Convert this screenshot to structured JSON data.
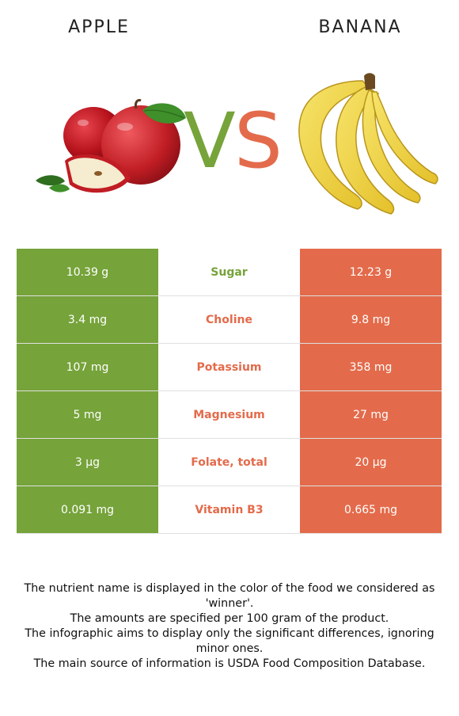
{
  "colors": {
    "left_accent": "#76a33a",
    "right_accent": "#e36b4b",
    "row_divider": "#e0e0e0"
  },
  "header": {
    "left_food": "APPLE",
    "right_food": "BANANA",
    "vs_v": "V",
    "vs_s": "S"
  },
  "images": {
    "left": "apple-image",
    "right": "banana-image"
  },
  "rows": [
    {
      "left": "10.39 g",
      "nutrient": "Sugar",
      "right": "12.23 g",
      "winner": "left"
    },
    {
      "left": "3.4 mg",
      "nutrient": "Choline",
      "right": "9.8 mg",
      "winner": "right"
    },
    {
      "left": "107 mg",
      "nutrient": "Potassium",
      "right": "358 mg",
      "winner": "right"
    },
    {
      "left": "5 mg",
      "nutrient": "Magnesium",
      "right": "27 mg",
      "winner": "right"
    },
    {
      "left": "3 µg",
      "nutrient": "Folate, total",
      "right": "20 µg",
      "winner": "right"
    },
    {
      "left": "0.091 mg",
      "nutrient": "Vitamin B3",
      "right": "0.665 mg",
      "winner": "right"
    }
  ],
  "footer": {
    "line1": "The nutrient name is displayed in the color of the food we considered as 'winner'.",
    "line2": "The amounts are specified per 100 gram of the product.",
    "line3": "The infographic aims to display only the significant differences, ignoring minor ones.",
    "line4": "The main source of information is USDA Food Composition Database."
  }
}
